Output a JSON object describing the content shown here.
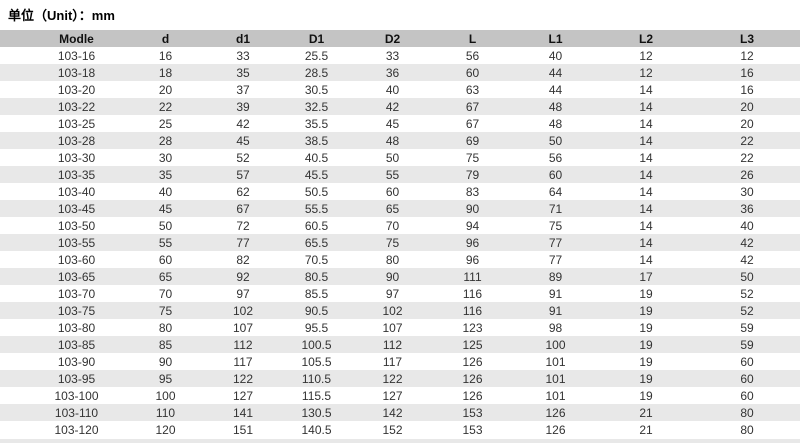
{
  "title": "单位（Unit）：mm",
  "colors": {
    "header_bg": "#c4c4c4",
    "stripe_bg": "#e8e8e8",
    "row_bg": "#ffffff",
    "cell_text": "#333333"
  },
  "table": {
    "columns": [
      "Modle",
      "d",
      "d1",
      "D1",
      "D2",
      "L",
      "L1",
      "L2",
      "L3"
    ],
    "rows": [
      [
        "103-16",
        "16",
        "33",
        "25.5",
        "33",
        "56",
        "40",
        "12",
        "12"
      ],
      [
        "103-18",
        "18",
        "35",
        "28.5",
        "36",
        "60",
        "44",
        "12",
        "16"
      ],
      [
        "103-20",
        "20",
        "37",
        "30.5",
        "40",
        "63",
        "44",
        "14",
        "16"
      ],
      [
        "103-22",
        "22",
        "39",
        "32.5",
        "42",
        "67",
        "48",
        "14",
        "20"
      ],
      [
        "103-25",
        "25",
        "42",
        "35.5",
        "45",
        "67",
        "48",
        "14",
        "20"
      ],
      [
        "103-28",
        "28",
        "45",
        "38.5",
        "48",
        "69",
        "50",
        "14",
        "22"
      ],
      [
        "103-30",
        "30",
        "52",
        "40.5",
        "50",
        "75",
        "56",
        "14",
        "22"
      ],
      [
        "103-35",
        "35",
        "57",
        "45.5",
        "55",
        "79",
        "60",
        "14",
        "26"
      ],
      [
        "103-40",
        "40",
        "62",
        "50.5",
        "60",
        "83",
        "64",
        "14",
        "30"
      ],
      [
        "103-45",
        "45",
        "67",
        "55.5",
        "65",
        "90",
        "71",
        "14",
        "36"
      ],
      [
        "103-50",
        "50",
        "72",
        "60.5",
        "70",
        "94",
        "75",
        "14",
        "40"
      ],
      [
        "103-55",
        "55",
        "77",
        "65.5",
        "75",
        "96",
        "77",
        "14",
        "42"
      ],
      [
        "103-60",
        "60",
        "82",
        "70.5",
        "80",
        "96",
        "77",
        "14",
        "42"
      ],
      [
        "103-65",
        "65",
        "92",
        "80.5",
        "90",
        "111",
        "89",
        "17",
        "50"
      ],
      [
        "103-70",
        "70",
        "97",
        "85.5",
        "97",
        "116",
        "91",
        "19",
        "52"
      ],
      [
        "103-75",
        "75",
        "102",
        "90.5",
        "102",
        "116",
        "91",
        "19",
        "52"
      ],
      [
        "103-80",
        "80",
        "107",
        "95.5",
        "107",
        "123",
        "98",
        "19",
        "59"
      ],
      [
        "103-85",
        "85",
        "112",
        "100.5",
        "112",
        "125",
        "100",
        "19",
        "59"
      ],
      [
        "103-90",
        "90",
        "117",
        "105.5",
        "117",
        "126",
        "101",
        "19",
        "60"
      ],
      [
        "103-95",
        "95",
        "122",
        "110.5",
        "122",
        "126",
        "101",
        "19",
        "60"
      ],
      [
        "103-100",
        "100",
        "127",
        "115.5",
        "127",
        "126",
        "101",
        "19",
        "60"
      ],
      [
        "103-110",
        "110",
        "141",
        "130.5",
        "142",
        "153",
        "126",
        "21",
        "80"
      ],
      [
        "103-120",
        "120",
        "151",
        "140.5",
        "152",
        "153",
        "126",
        "21",
        "80"
      ]
    ]
  }
}
